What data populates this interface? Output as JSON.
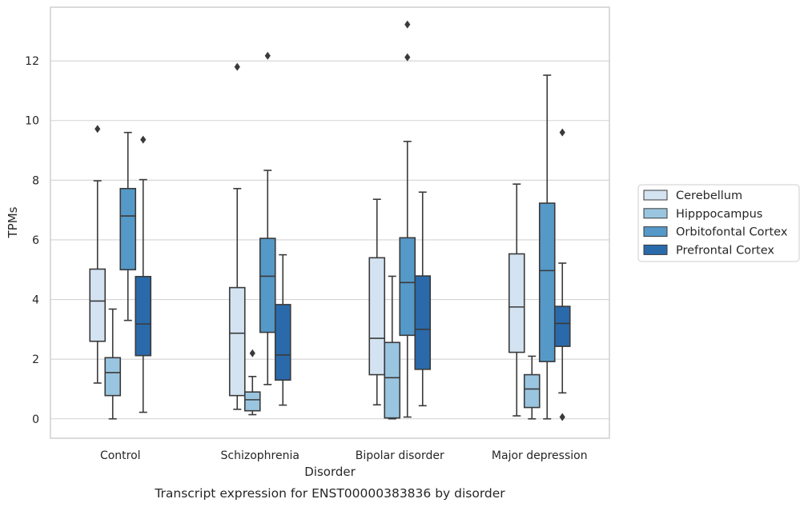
{
  "caption": "Transcript expression for ENST00000383836 by disorder",
  "chart_data": {
    "type": "boxplot",
    "title": "",
    "xlabel": "Disorder",
    "ylabel": "TPMs",
    "ylim": [
      -0.65,
      13.8
    ],
    "yticks": [
      0,
      2,
      4,
      6,
      8,
      10,
      12
    ],
    "grid": true,
    "legend_position": "right",
    "categories": [
      "Control",
      "Schizophrenia",
      "Bipolar disorder",
      "Major depression"
    ],
    "series": [
      {
        "name": "Cerebellum",
        "color": "#d4e3f2",
        "boxes": [
          {
            "whislo": 1.2,
            "q1": 2.6,
            "med": 3.95,
            "q3": 5.02,
            "whishi": 7.98,
            "fliers": [
              9.72
            ]
          },
          {
            "whislo": 0.32,
            "q1": 0.78,
            "med": 2.87,
            "q3": 4.4,
            "whishi": 7.72,
            "fliers": [
              11.8
            ]
          },
          {
            "whislo": 0.47,
            "q1": 1.48,
            "med": 2.7,
            "q3": 5.4,
            "whishi": 7.36,
            "fliers": []
          },
          {
            "whislo": 0.1,
            "q1": 2.23,
            "med": 3.75,
            "q3": 5.53,
            "whishi": 7.87,
            "fliers": []
          }
        ]
      },
      {
        "name": "Hipppocampus",
        "color": "#9ac5e0",
        "boxes": [
          {
            "whislo": 0.0,
            "q1": 0.78,
            "med": 1.55,
            "q3": 2.05,
            "whishi": 3.68,
            "fliers": []
          },
          {
            "whislo": 0.14,
            "q1": 0.27,
            "med": 0.64,
            "q3": 0.9,
            "whishi": 1.42,
            "fliers": [
              2.2
            ]
          },
          {
            "whislo": 0.0,
            "q1": 0.03,
            "med": 1.38,
            "q3": 2.56,
            "whishi": 4.78,
            "fliers": []
          },
          {
            "whislo": 0.0,
            "q1": 0.38,
            "med": 1.0,
            "q3": 1.48,
            "whishi": 2.1,
            "fliers": []
          }
        ]
      },
      {
        "name": "Orbitofontal Cortex",
        "color": "#5599c8",
        "boxes": [
          {
            "whislo": 3.3,
            "q1": 5.0,
            "med": 6.8,
            "q3": 7.72,
            "whishi": 9.6,
            "fliers": []
          },
          {
            "whislo": 1.15,
            "q1": 2.9,
            "med": 4.78,
            "q3": 6.05,
            "whishi": 8.33,
            "fliers": [
              12.17
            ]
          },
          {
            "whislo": 0.06,
            "q1": 2.8,
            "med": 4.57,
            "q3": 6.07,
            "whishi": 9.3,
            "fliers": [
              12.12,
              13.22
            ]
          },
          {
            "whislo": 0.0,
            "q1": 1.92,
            "med": 4.97,
            "q3": 7.23,
            "whishi": 11.52,
            "fliers": []
          }
        ]
      },
      {
        "name": "Prefrontal Cortex",
        "color": "#2a6aab",
        "boxes": [
          {
            "whislo": 0.22,
            "q1": 2.12,
            "med": 3.18,
            "q3": 4.77,
            "whishi": 8.02,
            "fliers": [
              9.36
            ]
          },
          {
            "whislo": 0.46,
            "q1": 1.3,
            "med": 2.14,
            "q3": 3.83,
            "whishi": 5.5,
            "fliers": []
          },
          {
            "whislo": 0.44,
            "q1": 1.66,
            "med": 3.0,
            "q3": 4.79,
            "whishi": 7.6,
            "fliers": []
          },
          {
            "whislo": 0.87,
            "q1": 2.43,
            "med": 3.2,
            "q3": 3.77,
            "whishi": 5.22,
            "fliers": [
              0.06,
              9.6
            ]
          }
        ]
      }
    ]
  }
}
